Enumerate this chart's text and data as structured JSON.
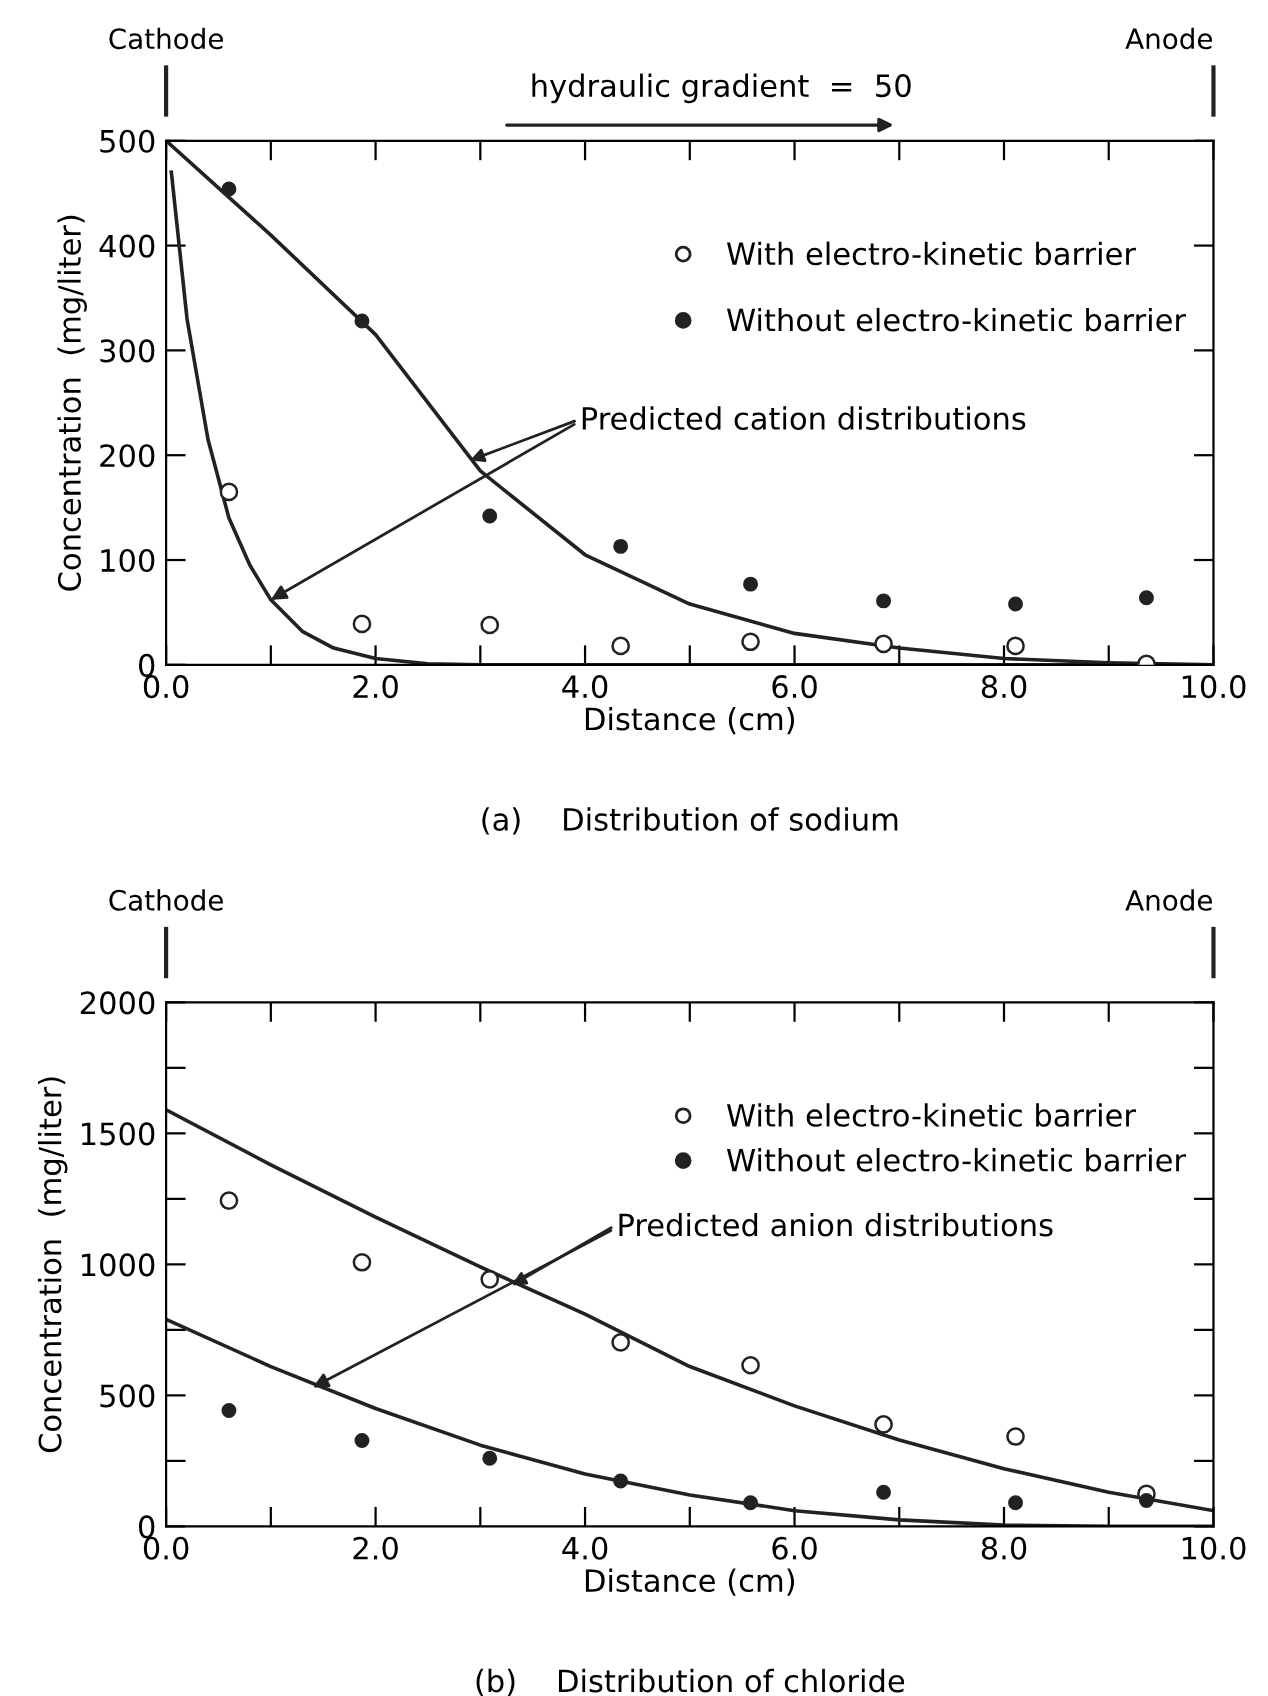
{
  "chart_data": [
    {
      "type": "scatter",
      "title": "(a)    Distribution of sodium",
      "xlabel": "Distance (cm)",
      "ylabel": "Concentration  (mg/liter)",
      "xlim": [
        0,
        10
      ],
      "ylim": [
        0,
        500
      ],
      "xticks": [
        {
          "value": 0,
          "label": "0.0"
        },
        {
          "value": 1,
          "label": null
        },
        {
          "value": 2,
          "label": "2.0"
        },
        {
          "value": 3,
          "label": null
        },
        {
          "value": 4,
          "label": "4.0"
        },
        {
          "value": 5,
          "label": null
        },
        {
          "value": 6,
          "label": "6.0"
        },
        {
          "value": 7,
          "label": null
        },
        {
          "value": 8,
          "label": "8.0"
        },
        {
          "value": 9,
          "label": null
        },
        {
          "value": 10,
          "label": "10.0"
        }
      ],
      "yticks": [
        0,
        100,
        200,
        300,
        400,
        500
      ],
      "grid": false,
      "legend": "top right",
      "series": [
        {
          "name": "With electro-kinetic barrier",
          "marker": "circle",
          "color": "#222222",
          "x": [
            0.6,
            1.87,
            3.09,
            4.34,
            5.58,
            6.85,
            8.11,
            9.36
          ],
          "values": [
            165,
            39,
            38,
            18,
            22,
            20,
            18,
            1
          ]
        },
        {
          "name": "Without electro-kinetic barrier",
          "marker": "circle",
          "color": "#222222",
          "x": [
            0.6,
            1.87,
            3.09,
            4.34,
            5.58,
            6.85,
            8.11,
            9.36
          ],
          "values": [
            454,
            328,
            142,
            113,
            77,
            61,
            58,
            64
          ]
        },
        {
          "type": "line",
          "marker": "none",
          "color": "#222222",
          "x": [
            0.05,
            0.2,
            0.4,
            0.6,
            0.8,
            1.0,
            1.3,
            1.6,
            2.0,
            2.5,
            3.0,
            10.0
          ],
          "values": [
            470,
            330,
            215,
            140,
            95,
            62,
            32,
            16,
            6,
            1,
            0,
            0
          ]
        },
        {
          "type": "line",
          "marker": "none",
          "color": "#222222",
          "x": [
            0,
            1,
            2,
            3,
            4,
            5,
            6,
            7,
            8,
            9,
            10
          ],
          "values": [
            500,
            410,
            315,
            185,
            105,
            58,
            30,
            16,
            6,
            2,
            0
          ]
        }
      ],
      "annotations": [
        "Cathode",
        "Anode",
        "hydraulic gradient  =  50",
        {
          "text": "Predicted cation distributions",
          "x": 1.0,
          "y": 62
        }
      ]
    },
    {
      "type": "scatter",
      "title": "(b)    Distribution of chloride",
      "xlabel": "Distance (cm)",
      "ylabel": "Concentration  (mg/liter)",
      "xlim": [
        0,
        10
      ],
      "ylim": [
        0,
        2000
      ],
      "xticks": [
        {
          "value": 0,
          "label": "0.0"
        },
        {
          "value": 1,
          "label": null
        },
        {
          "value": 2,
          "label": "2.0"
        },
        {
          "value": 3,
          "label": null
        },
        {
          "value": 4,
          "label": "4.0"
        },
        {
          "value": 5,
          "label": null
        },
        {
          "value": 6,
          "label": "6.0"
        },
        {
          "value": 7,
          "label": null
        },
        {
          "value": 8,
          "label": "8.0"
        },
        {
          "value": 9,
          "label": null
        },
        {
          "value": 10,
          "label": "10.0"
        }
      ],
      "yticks": [
        0,
        {
          "value": 250,
          "label": null
        },
        500,
        {
          "value": 750,
          "label": null
        },
        1000,
        {
          "value": 1250,
          "label": null
        },
        1500,
        {
          "value": 1750,
          "label": null
        },
        2000
      ],
      "grid": false,
      "legend": "top right",
      "series": [
        {
          "name": "With electro-kinetic barrier",
          "marker": "circle",
          "color": "#222222",
          "x": [
            0.6,
            1.87,
            3.09,
            4.34,
            5.58,
            6.85,
            8.11,
            9.36
          ],
          "values": [
            1243,
            1008,
            943,
            702,
            615,
            389,
            343,
            124
          ]
        },
        {
          "name": "Without electro-kinetic barrier",
          "marker": "circle",
          "color": "#222222",
          "x": [
            0.6,
            1.87,
            3.09,
            4.34,
            5.58,
            6.85,
            8.11,
            9.36
          ],
          "values": [
            442,
            328,
            260,
            173,
            90,
            130,
            90,
            99
          ]
        },
        {
          "type": "line",
          "marker": "none",
          "color": "#222222",
          "x": [
            0,
            1,
            2,
            3,
            4,
            5,
            6,
            7,
            8,
            9,
            10
          ],
          "values": [
            1590,
            1380,
            1180,
            990,
            810,
            610,
            460,
            330,
            220,
            130,
            60
          ]
        },
        {
          "type": "line",
          "marker": "none",
          "color": "#222222",
          "x": [
            0,
            1,
            2,
            3,
            4,
            5,
            6,
            7,
            8,
            9,
            10
          ],
          "values": [
            790,
            610,
            450,
            310,
            200,
            120,
            60,
            25,
            5,
            0,
            0
          ]
        }
      ],
      "annotations": [
        "Cathode",
        "Anode",
        {
          "text": "Predicted anion distributions",
          "x": 1.4,
          "y": 530
        }
      ]
    }
  ]
}
